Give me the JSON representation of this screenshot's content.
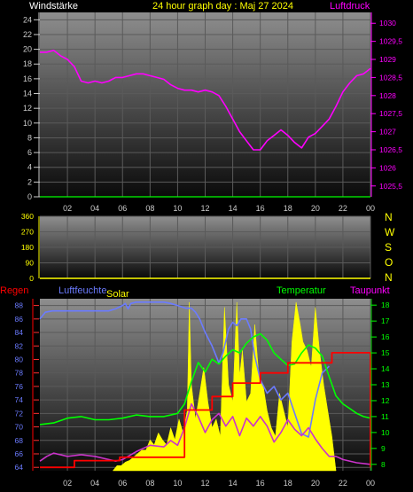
{
  "header": {
    "left_label": "Windstärke",
    "title": "24 hour graph day : Maj 27 2024",
    "right_label": "Luftdruck"
  },
  "colors": {
    "yellow": "#ffff00",
    "magenta": "#ff00ff",
    "green": "#00ff00",
    "red": "#ff0000",
    "blue": "#6b7bff",
    "purple": "#cc33cc",
    "axis_left": "#cccccc",
    "direction_letters": "#ffff00"
  },
  "time_ticks": [
    "02",
    "04",
    "06",
    "08",
    "10",
    "12",
    "14",
    "16",
    "18",
    "20",
    "22",
    "00"
  ],
  "panel3_legends": {
    "regen": "Regen",
    "luftfeuchte": "Luftfeuchte",
    "solar": "Solar",
    "temperatur": "Temperatur",
    "taupunkt": "Taupunkt"
  },
  "direction_letters": [
    "N",
    "W",
    "S",
    "O",
    "N"
  ],
  "chart_data": [
    {
      "type": "line",
      "title": "24 hour graph day : Maj 27 2024",
      "x_range": [
        0,
        24
      ],
      "left_axis": {
        "label": "Windstärke",
        "ticks": [
          0,
          2,
          4,
          6,
          8,
          10,
          12,
          14,
          16,
          18,
          20,
          22,
          24
        ],
        "range": [
          0,
          25
        ]
      },
      "right_axis": {
        "label": "Luftdruck",
        "ticks": [
          "1025,5",
          "1026",
          "1026,5",
          "1027",
          "1027,5",
          "1028",
          "1028,5",
          "1029",
          "1029,5",
          "1030"
        ],
        "range": [
          1025.2,
          1030.3
        ]
      },
      "series": [
        {
          "name": "Luftdruck",
          "axis": "right",
          "x": [
            0,
            0.5,
            1,
            1.5,
            2,
            2.5,
            3,
            3.5,
            4,
            4.5,
            5,
            5.5,
            6,
            6.5,
            7,
            7.5,
            8,
            8.5,
            9,
            9.5,
            10,
            10.5,
            11,
            11.5,
            12,
            12.5,
            13,
            13.5,
            14,
            14.5,
            15,
            15.5,
            16,
            16.5,
            17,
            17.5,
            18,
            18.5,
            19,
            19.5,
            20,
            20.5,
            21,
            21.5,
            22,
            22.5,
            23,
            23.5,
            24
          ],
          "y": [
            1029.2,
            1029.2,
            1029.25,
            1029.1,
            1029.0,
            1028.8,
            1028.4,
            1028.35,
            1028.4,
            1028.35,
            1028.4,
            1028.5,
            1028.5,
            1028.55,
            1028.6,
            1028.6,
            1028.55,
            1028.5,
            1028.45,
            1028.3,
            1028.2,
            1028.15,
            1028.15,
            1028.1,
            1028.15,
            1028.1,
            1028.0,
            1027.7,
            1027.35,
            1027.0,
            1026.75,
            1026.5,
            1026.5,
            1026.75,
            1026.9,
            1027.05,
            1026.9,
            1026.7,
            1026.55,
            1026.85,
            1026.95,
            1027.15,
            1027.35,
            1027.7,
            1028.1,
            1028.35,
            1028.55,
            1028.6,
            1028.75
          ]
        },
        {
          "name": "Windstärke",
          "axis": "left",
          "x": [
            0,
            24
          ],
          "y": [
            0,
            0
          ]
        }
      ]
    },
    {
      "type": "line",
      "x_range": [
        0,
        24
      ],
      "left_axis": {
        "ticks": [
          0,
          90,
          180,
          270,
          360
        ],
        "range": [
          0,
          360
        ]
      },
      "series": [
        {
          "name": "Windrichtung",
          "x": [
            0,
            24
          ],
          "y": [
            0,
            0
          ]
        }
      ]
    },
    {
      "type": "area",
      "x_range": [
        0,
        24
      ],
      "left_axis": {
        "label": "Luftfeuchte",
        "ticks": [
          64,
          66,
          68,
          70,
          72,
          74,
          76,
          78,
          80,
          82,
          84,
          86,
          88
        ],
        "range": [
          63.5,
          89
        ]
      },
      "right_axis": {
        "label": "Temperatur",
        "ticks": [
          8,
          9,
          10,
          11,
          12,
          13,
          14,
          15,
          16,
          17,
          18
        ],
        "range": [
          7.6,
          18.4
        ]
      },
      "series": [
        {
          "name": "Solar",
          "axis": "none",
          "x": [
            5.3,
            5.6,
            5.9,
            6.2,
            6.5,
            6.8,
            7.1,
            7.4,
            7.7,
            8.0,
            8.3,
            8.6,
            8.9,
            9.2,
            9.5,
            9.8,
            10.1,
            10.4,
            10.7,
            10.85,
            11.0,
            11.3,
            11.6,
            11.9,
            12.2,
            12.5,
            12.8,
            13.1,
            13.4,
            13.7,
            14.0,
            14.3,
            14.5,
            14.7,
            15.0,
            15.3,
            15.6,
            15.9,
            16.2,
            16.5,
            16.8,
            17.1,
            17.4,
            17.7,
            18.0,
            18.3,
            18.6,
            18.9,
            19.1,
            19.4,
            19.7,
            20.0,
            20.3,
            20.6,
            20.9,
            21.2,
            21.5
          ],
          "y": [
            0,
            0.03,
            0.03,
            0.05,
            0.06,
            0.08,
            0.1,
            0.12,
            0.12,
            0.18,
            0.15,
            0.22,
            0.18,
            0.15,
            0.25,
            0.18,
            0.3,
            0.22,
            0.35,
            0.98,
            0.5,
            0.3,
            0.45,
            0.6,
            0.4,
            0.25,
            0.3,
            0.2,
            0.95,
            0.5,
            0.4,
            0.98,
            0.55,
            0.7,
            0.4,
            0.45,
            0.85,
            0.55,
            0.5,
            0.35,
            0.25,
            0.2,
            0.45,
            0.35,
            0.25,
            0.75,
            0.98,
            0.85,
            0.75,
            0.7,
            0.6,
            0.95,
            0.7,
            0.5,
            0.35,
            0.2,
            0
          ]
        },
        {
          "name": "Luftfeuchte",
          "axis": "left",
          "x": [
            0,
            0.4,
            0.9,
            1.2,
            3,
            5,
            5.5,
            6,
            6.2,
            6.4,
            6.6,
            7,
            8,
            9,
            9.5,
            10,
            10.3,
            10.6,
            11,
            11.3,
            11.6,
            12,
            12.5,
            13,
            13.3,
            13.7,
            14,
            14.3,
            14.6,
            15,
            15.3,
            15.6,
            16,
            16.5,
            17,
            17.5,
            18,
            18.5,
            19,
            19.5,
            20,
            20.5,
            21
          ],
          "y": [
            86,
            87,
            87.2,
            87.2,
            87.2,
            87.2,
            87.5,
            88,
            88.3,
            87.5,
            88.3,
            88.5,
            88.5,
            88.5,
            88.3,
            88.0,
            87.8,
            87.6,
            87.6,
            87.0,
            86.0,
            84.0,
            82.0,
            79.5,
            81,
            84.5,
            85.5,
            85,
            86,
            86,
            84.5,
            80.5,
            77,
            75,
            76,
            74,
            75,
            72,
            69,
            68.5,
            74,
            78,
            79
          ]
        },
        {
          "name": "Temperatur",
          "axis": "right",
          "x": [
            0,
            1,
            2,
            3,
            4,
            5,
            6,
            7,
            8,
            9,
            10,
            10.5,
            11,
            11.5,
            12,
            12.5,
            13,
            13.5,
            14,
            14.5,
            15,
            15.5,
            16,
            16.5,
            17,
            17.5,
            18,
            18.5,
            19,
            19.5,
            20,
            20.5,
            21,
            21.5,
            22,
            22.5,
            23,
            23.5,
            24
          ],
          "y": [
            10.5,
            10.6,
            10.9,
            11.0,
            10.8,
            10.8,
            10.9,
            11.1,
            11.0,
            11.0,
            11.2,
            11.8,
            13.2,
            14.4,
            13.8,
            14.6,
            14.3,
            14.8,
            15.2,
            15.0,
            15.6,
            16.0,
            16.2,
            15.8,
            15.0,
            14.6,
            14.2,
            14.3,
            15.0,
            15.5,
            15.3,
            14.8,
            13.5,
            12.3,
            11.8,
            11.5,
            11.2,
            11.0,
            10.9
          ]
        },
        {
          "name": "Taupunkt",
          "axis": "right",
          "x": [
            0,
            0.5,
            1,
            1.5,
            2,
            3,
            4,
            5,
            5.5,
            6,
            7,
            8,
            9,
            9.5,
            10,
            10.5,
            11,
            11.5,
            12,
            12.5,
            13,
            13.5,
            14,
            14.5,
            15,
            15.5,
            16,
            16.5,
            17,
            17.5,
            18,
            18.5,
            19,
            19.5,
            20,
            20.5,
            21,
            21.5,
            22,
            23,
            24
          ],
          "y": [
            8.2,
            8.5,
            8.7,
            8.6,
            8.5,
            8.6,
            8.5,
            8.3,
            8.2,
            8.3,
            8.8,
            9.2,
            9.1,
            9.5,
            9.2,
            10.3,
            11.8,
            11.0,
            10.0,
            10.8,
            11.2,
            10.4,
            11.0,
            9.8,
            10.9,
            10.4,
            11.0,
            10.4,
            9.4,
            10.0,
            10.8,
            10.2,
            9.8,
            10.3,
            9.6,
            9.0,
            8.5,
            8.5,
            8.3,
            8.1,
            8.0
          ]
        },
        {
          "name": "Regen",
          "axis": "left",
          "x": [
            0,
            2.5,
            2.5,
            5.8,
            5.8,
            10.5,
            10.5,
            12.5,
            12.5,
            14,
            14,
            16,
            16,
            18,
            18,
            21.2,
            21.2,
            24,
            24
          ],
          "y": [
            64,
            64,
            65,
            65,
            65.5,
            65.5,
            72.5,
            72.5,
            74.5,
            74.5,
            76.5,
            76.5,
            78,
            78,
            79.5,
            79.5,
            81,
            81,
            64
          ]
        }
      ]
    }
  ]
}
